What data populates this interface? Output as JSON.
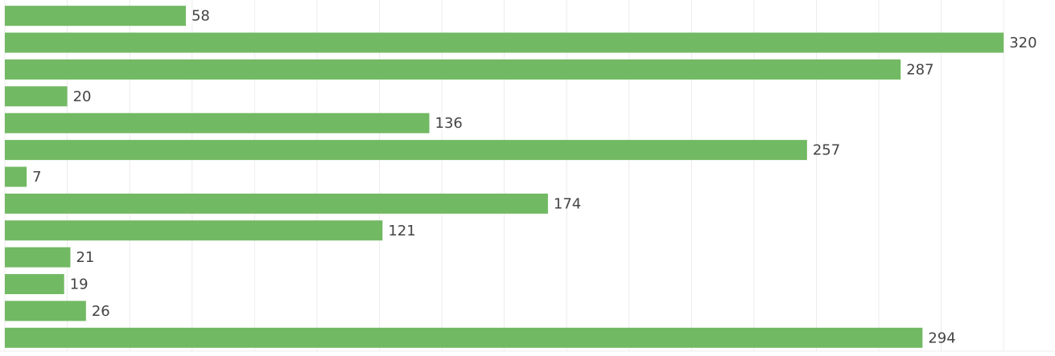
{
  "chart_data": {
    "type": "barh",
    "values": [
      58,
      320,
      287,
      20,
      136,
      257,
      7,
      174,
      121,
      21,
      19,
      26,
      294
    ],
    "color": "#72b963",
    "xlim": [
      0,
      330
    ],
    "xticks": [
      0,
      20,
      40,
      60,
      80,
      100,
      120,
      140,
      160,
      180,
      200,
      220,
      240,
      260,
      280,
      300,
      320
    ],
    "grid": true
  }
}
